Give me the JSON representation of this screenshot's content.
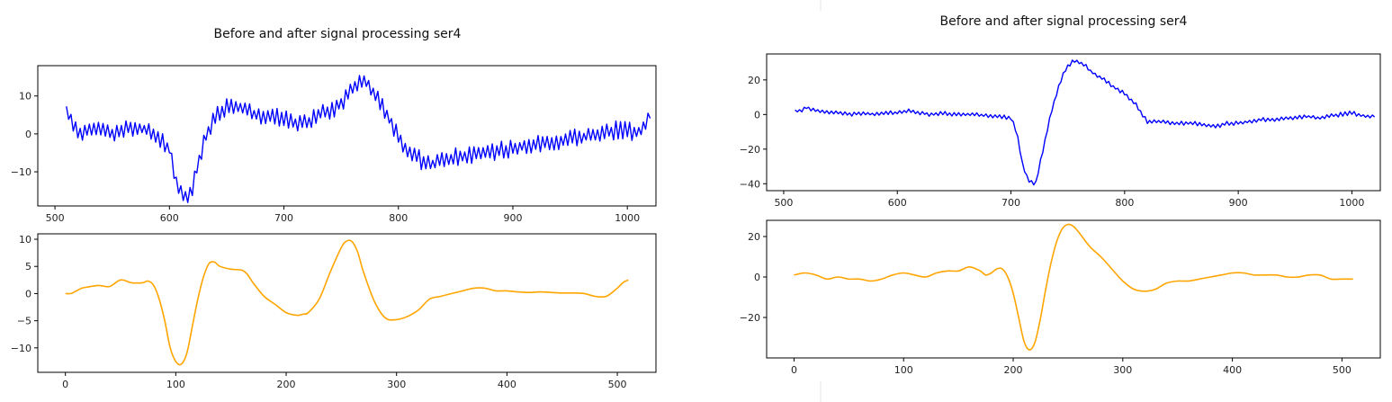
{
  "colors": {
    "raw": "#0000ff",
    "processed": "#ffa500",
    "frame": "#000000"
  },
  "chart_data": [
    {
      "panel": "left",
      "type": "line",
      "title": "Before and after signal processing ser4",
      "subplots": [
        {
          "role": "raw",
          "color": "#0000ff",
          "xlim": [
            485,
            1025
          ],
          "ylim": [
            -19,
            18
          ],
          "xticks": [
            500,
            600,
            700,
            800,
            900,
            1000
          ],
          "yticks": [
            -10,
            0,
            10
          ],
          "x": [
            510,
            520,
            530,
            540,
            550,
            560,
            570,
            580,
            590,
            600,
            605,
            610,
            615,
            620,
            625,
            630,
            640,
            650,
            660,
            670,
            680,
            690,
            700,
            710,
            720,
            730,
            740,
            750,
            760,
            765,
            770,
            775,
            780,
            790,
            800,
            810,
            820,
            830,
            840,
            850,
            860,
            870,
            880,
            890,
            900,
            910,
            920,
            930,
            940,
            950,
            960,
            970,
            980,
            990,
            1000,
            1010,
            1020
          ],
          "y": [
            6,
            0,
            1,
            1,
            0,
            1,
            2,
            1,
            -1,
            -4,
            -12,
            -16,
            -17,
            -14,
            -8,
            -2,
            5,
            7,
            7,
            6,
            4,
            5,
            4,
            3,
            3,
            5,
            6,
            8,
            12,
            14,
            14,
            13,
            10,
            5,
            -1,
            -5,
            -7,
            -8,
            -7,
            -6,
            -6,
            -5,
            -5,
            -4,
            -4,
            -3,
            -3,
            -2,
            -2,
            -1,
            -1,
            0,
            0,
            1,
            1,
            0,
            5
          ],
          "noise": 2.4
        },
        {
          "role": "processed",
          "color": "#ffa500",
          "xlim": [
            -25,
            535
          ],
          "ylim": [
            -14.5,
            11
          ],
          "xticks": [
            0,
            100,
            200,
            300,
            400,
            500
          ],
          "yticks": [
            -10,
            -5,
            0,
            5,
            10
          ],
          "x": [
            0,
            5,
            10,
            15,
            20,
            30,
            40,
            50,
            60,
            70,
            75,
            80,
            85,
            90,
            95,
            100,
            105,
            110,
            115,
            120,
            125,
            130,
            135,
            140,
            150,
            160,
            165,
            170,
            180,
            190,
            200,
            210,
            215,
            220,
            230,
            240,
            250,
            255,
            260,
            265,
            270,
            280,
            290,
            300,
            310,
            320,
            330,
            340,
            350,
            360,
            370,
            380,
            390,
            400,
            410,
            420,
            430,
            440,
            450,
            460,
            470,
            480,
            490,
            500,
            505,
            510
          ],
          "y": [
            0,
            0,
            0.5,
            1,
            1.2,
            1.5,
            1.3,
            2.5,
            2,
            2,
            2.3,
            1.5,
            -1,
            -5,
            -10,
            -12.5,
            -13,
            -11,
            -6,
            -1,
            3,
            5.5,
            5.8,
            5,
            4.5,
            4.3,
            3.5,
            2,
            -0.5,
            -2,
            -3.5,
            -4,
            -3.8,
            -3.5,
            -1,
            4,
            8.5,
            9.7,
            9.5,
            7.5,
            4,
            -1.5,
            -4.5,
            -4.8,
            -4.2,
            -3,
            -1,
            -0.5,
            0,
            0.5,
            1,
            1,
            0.5,
            0.5,
            0.3,
            0.2,
            0.3,
            0.2,
            0.1,
            0.1,
            0,
            -0.5,
            -0.5,
            1,
            2,
            2.5
          ]
        }
      ]
    },
    {
      "panel": "right",
      "type": "line",
      "title": "Before and after signal processing ser4",
      "subplots": [
        {
          "role": "raw",
          "color": "#0000ff",
          "xlim": [
            485,
            1025
          ],
          "ylim": [
            -44,
            35
          ],
          "xticks": [
            500,
            600,
            700,
            800,
            900,
            1000
          ],
          "yticks": [
            -40,
            -20,
            0,
            20
          ],
          "x": [
            510,
            515,
            520,
            525,
            530,
            540,
            550,
            560,
            570,
            580,
            590,
            600,
            610,
            620,
            630,
            640,
            650,
            660,
            670,
            680,
            690,
            700,
            705,
            710,
            715,
            720,
            722,
            725,
            730,
            735,
            740,
            745,
            750,
            755,
            760,
            765,
            770,
            780,
            790,
            800,
            810,
            815,
            820,
            830,
            840,
            850,
            860,
            870,
            880,
            890,
            900,
            910,
            920,
            930,
            940,
            950,
            960,
            970,
            980,
            990,
            1000,
            1010,
            1020
          ],
          "y": [
            2,
            2,
            4,
            3,
            2,
            1,
            1,
            0,
            1,
            0,
            1,
            1,
            2,
            1,
            0,
            1,
            0,
            0,
            0,
            -1,
            -1,
            -2,
            -10,
            -28,
            -38,
            -40,
            -39,
            -30,
            -15,
            0,
            12,
            22,
            28,
            31,
            30,
            29,
            25,
            21,
            16,
            12,
            6,
            0,
            -4,
            -4,
            -5,
            -5,
            -5,
            -6,
            -7,
            -5,
            -5,
            -4,
            -3,
            -3,
            -2,
            -2,
            -1,
            -2,
            -1,
            0,
            1,
            -1,
            -1
          ],
          "noise": 1.2
        },
        {
          "role": "processed",
          "color": "#ffa500",
          "xlim": [
            -25,
            535
          ],
          "ylim": [
            -40,
            28
          ],
          "xticks": [
            0,
            100,
            200,
            300,
            400,
            500
          ],
          "yticks": [
            -20,
            0,
            20
          ],
          "x": [
            0,
            10,
            20,
            30,
            40,
            50,
            60,
            70,
            80,
            90,
            100,
            110,
            120,
            130,
            140,
            150,
            160,
            170,
            175,
            180,
            185,
            190,
            195,
            200,
            205,
            210,
            215,
            220,
            225,
            230,
            235,
            240,
            245,
            250,
            255,
            260,
            270,
            280,
            290,
            300,
            310,
            320,
            330,
            340,
            350,
            360,
            370,
            380,
            390,
            400,
            410,
            420,
            430,
            440,
            450,
            460,
            470,
            480,
            490,
            500,
            510
          ],
          "y": [
            1,
            2,
            1,
            -1,
            0,
            -1,
            -1,
            -2,
            -1,
            1,
            2,
            1,
            0,
            2,
            3,
            3,
            5,
            3,
            1,
            2,
            4,
            4,
            0,
            -8,
            -20,
            -32,
            -36,
            -32,
            -20,
            -5,
            8,
            18,
            24,
            26,
            25,
            22,
            15,
            10,
            4,
            -2,
            -6,
            -7,
            -6,
            -3,
            -2,
            -2,
            -1,
            0,
            1,
            2,
            2,
            1,
            1,
            1,
            0,
            0,
            1,
            1,
            -1,
            -1,
            -1
          ]
        }
      ]
    }
  ]
}
